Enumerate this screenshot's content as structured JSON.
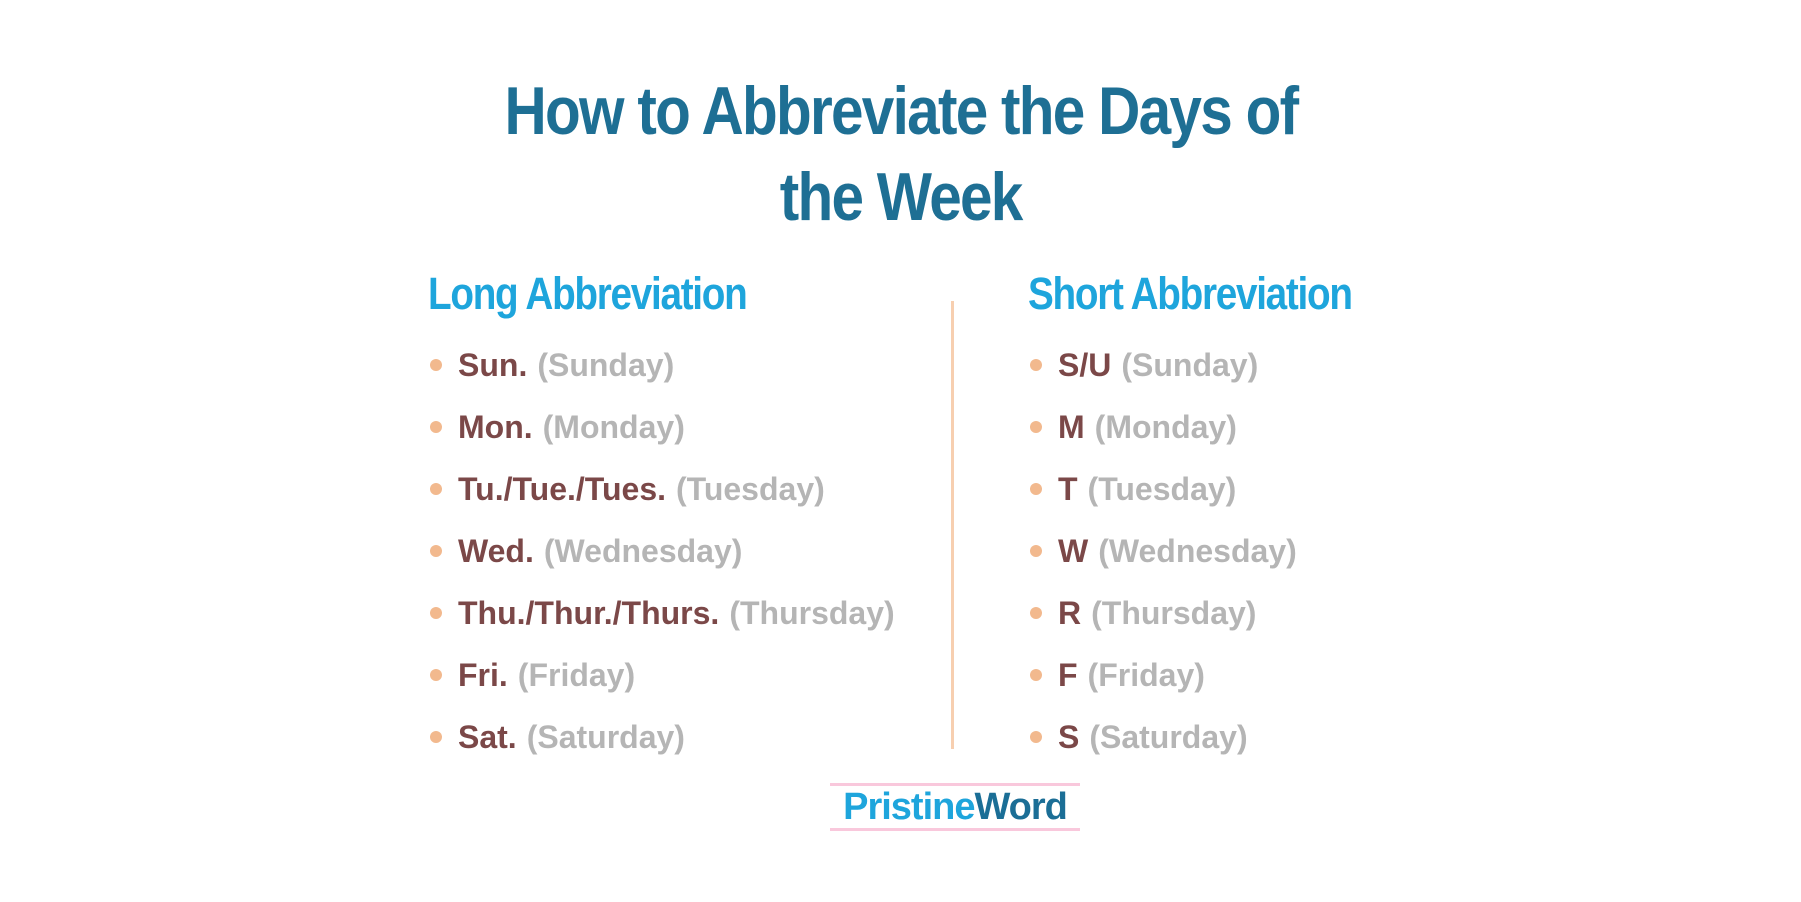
{
  "title": {
    "line1": "How to Abbreviate the Days of",
    "line2": "the Week"
  },
  "long": {
    "heading": "Long Abbreviation",
    "items": [
      {
        "abbr": "Sun.",
        "full": "(Sunday)"
      },
      {
        "abbr": "Mon.",
        "full": "(Monday)"
      },
      {
        "abbr": "Tu./Tue./Tues.",
        "full": "(Tuesday)"
      },
      {
        "abbr": "Wed.",
        "full": "(Wednesday)"
      },
      {
        "abbr": "Thu./Thur./Thurs.",
        "full": "(Thursday)"
      },
      {
        "abbr": "Fri.",
        "full": "(Friday)"
      },
      {
        "abbr": "Sat.",
        "full": "(Saturday)"
      }
    ]
  },
  "short": {
    "heading": "Short Abbreviation",
    "items": [
      {
        "abbr": "S/U",
        "full": "(Sunday)"
      },
      {
        "abbr": "M",
        "full": "(Monday)"
      },
      {
        "abbr": "T",
        "full": "(Tuesday)"
      },
      {
        "abbr": "W",
        "full": "(Wednesday)"
      },
      {
        "abbr": "R",
        "full": "(Thursday)"
      },
      {
        "abbr": "F",
        "full": "(Friday)"
      },
      {
        "abbr": "S",
        "full": "(Saturday)"
      }
    ]
  },
  "logo": {
    "part1": "Pristine",
    "part2": "Word"
  },
  "colors": {
    "title": "#1e6f94",
    "heading": "#1ea5dc",
    "abbr": "#7b4848",
    "full": "#b5b5b5",
    "bullet": "#f2b98e",
    "divider": "#f7cfb0"
  }
}
